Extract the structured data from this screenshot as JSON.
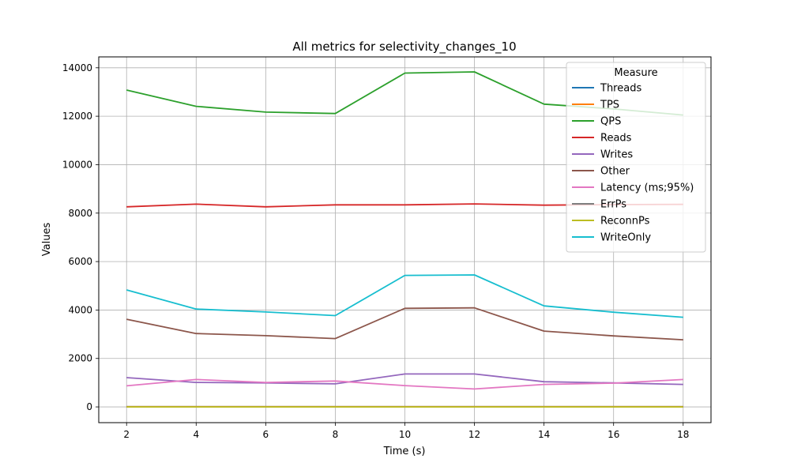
{
  "chart_data": {
    "type": "line",
    "title": "All metrics for selectivity_changes_10",
    "xlabel": "Time (s)",
    "ylabel": "Values",
    "xlim": [
      1.2,
      18.8
    ],
    "ylim": [
      -650,
      14450
    ],
    "xticks": [
      2,
      4,
      6,
      8,
      10,
      12,
      14,
      16,
      18
    ],
    "yticks": [
      0,
      2000,
      4000,
      6000,
      8000,
      10000,
      12000,
      14000
    ],
    "grid": true,
    "legend": {
      "title": "Measure",
      "placement": "top-right"
    },
    "x": [
      2,
      4,
      6,
      8,
      10,
      12,
      14,
      16,
      18
    ],
    "series": [
      {
        "name": "Threads",
        "color": "#1f77b4",
        "values": [
          10,
          10,
          10,
          10,
          10,
          10,
          10,
          10,
          10
        ]
      },
      {
        "name": "TPS",
        "color": "#ff7f0e",
        "values": [
          10,
          10,
          10,
          10,
          10,
          10,
          10,
          10,
          10
        ]
      },
      {
        "name": "QPS",
        "color": "#2ca02c",
        "values": [
          13080,
          12410,
          12170,
          12110,
          13780,
          13830,
          12500,
          12300,
          12050
        ]
      },
      {
        "name": "Reads",
        "color": "#d62728",
        "values": [
          8260,
          8370,
          8260,
          8340,
          8340,
          8380,
          8330,
          8350,
          8360
        ]
      },
      {
        "name": "Writes",
        "color": "#9467bd",
        "values": [
          1210,
          1010,
          990,
          950,
          1360,
          1360,
          1040,
          990,
          930
        ]
      },
      {
        "name": "Other",
        "color": "#8c564b",
        "values": [
          3620,
          3030,
          2940,
          2820,
          4070,
          4090,
          3130,
          2930,
          2770
        ]
      },
      {
        "name": "Latency (ms;95%)",
        "color": "#e377c2",
        "values": [
          870,
          1130,
          1010,
          1070,
          880,
          740,
          930,
          980,
          1130
        ]
      },
      {
        "name": "ErrPs",
        "color": "#7f7f7f",
        "values": [
          0,
          0,
          0,
          0,
          0,
          0,
          0,
          0,
          0
        ]
      },
      {
        "name": "ReconnPs",
        "color": "#bcbd22",
        "values": [
          0,
          0,
          0,
          0,
          0,
          0,
          0,
          0,
          0
        ]
      },
      {
        "name": "WriteOnly",
        "color": "#17becf",
        "values": [
          4830,
          4040,
          3920,
          3770,
          5430,
          5450,
          4170,
          3910,
          3700
        ]
      }
    ]
  }
}
